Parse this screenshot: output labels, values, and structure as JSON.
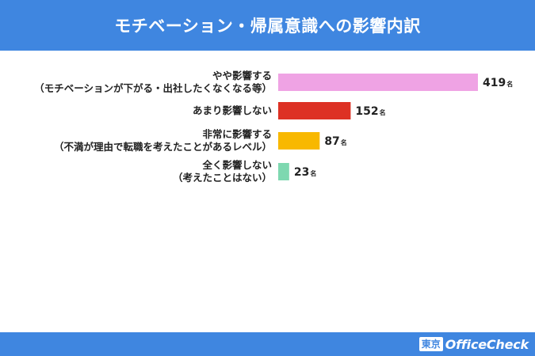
{
  "header": {
    "title": "モチベーション・帰属意識への影響内訳"
  },
  "footer": {
    "brand_box": "東京",
    "brand_name": "OfficeCheck"
  },
  "chart_data": {
    "type": "bar",
    "orientation": "horizontal",
    "title": "モチベーション・帰属意識への影響内訳",
    "xlabel": "",
    "ylabel": "",
    "grid": false,
    "legend": "none",
    "unit": "名",
    "categories": [
      [
        "やや影響する",
        "（モチベーションが下がる・出社したくなくなる等）"
      ],
      [
        "あまり影響しない"
      ],
      [
        "非常に影響する",
        "（不満が理由で転職を考えたことがあるレベル）"
      ],
      [
        "全く影響しない",
        "（考えたことはない）"
      ]
    ],
    "values": [
      419,
      152,
      87,
      23
    ],
    "colors": [
      "#efa3e4",
      "#dd3124",
      "#f8b800",
      "#7ed8b0"
    ]
  }
}
